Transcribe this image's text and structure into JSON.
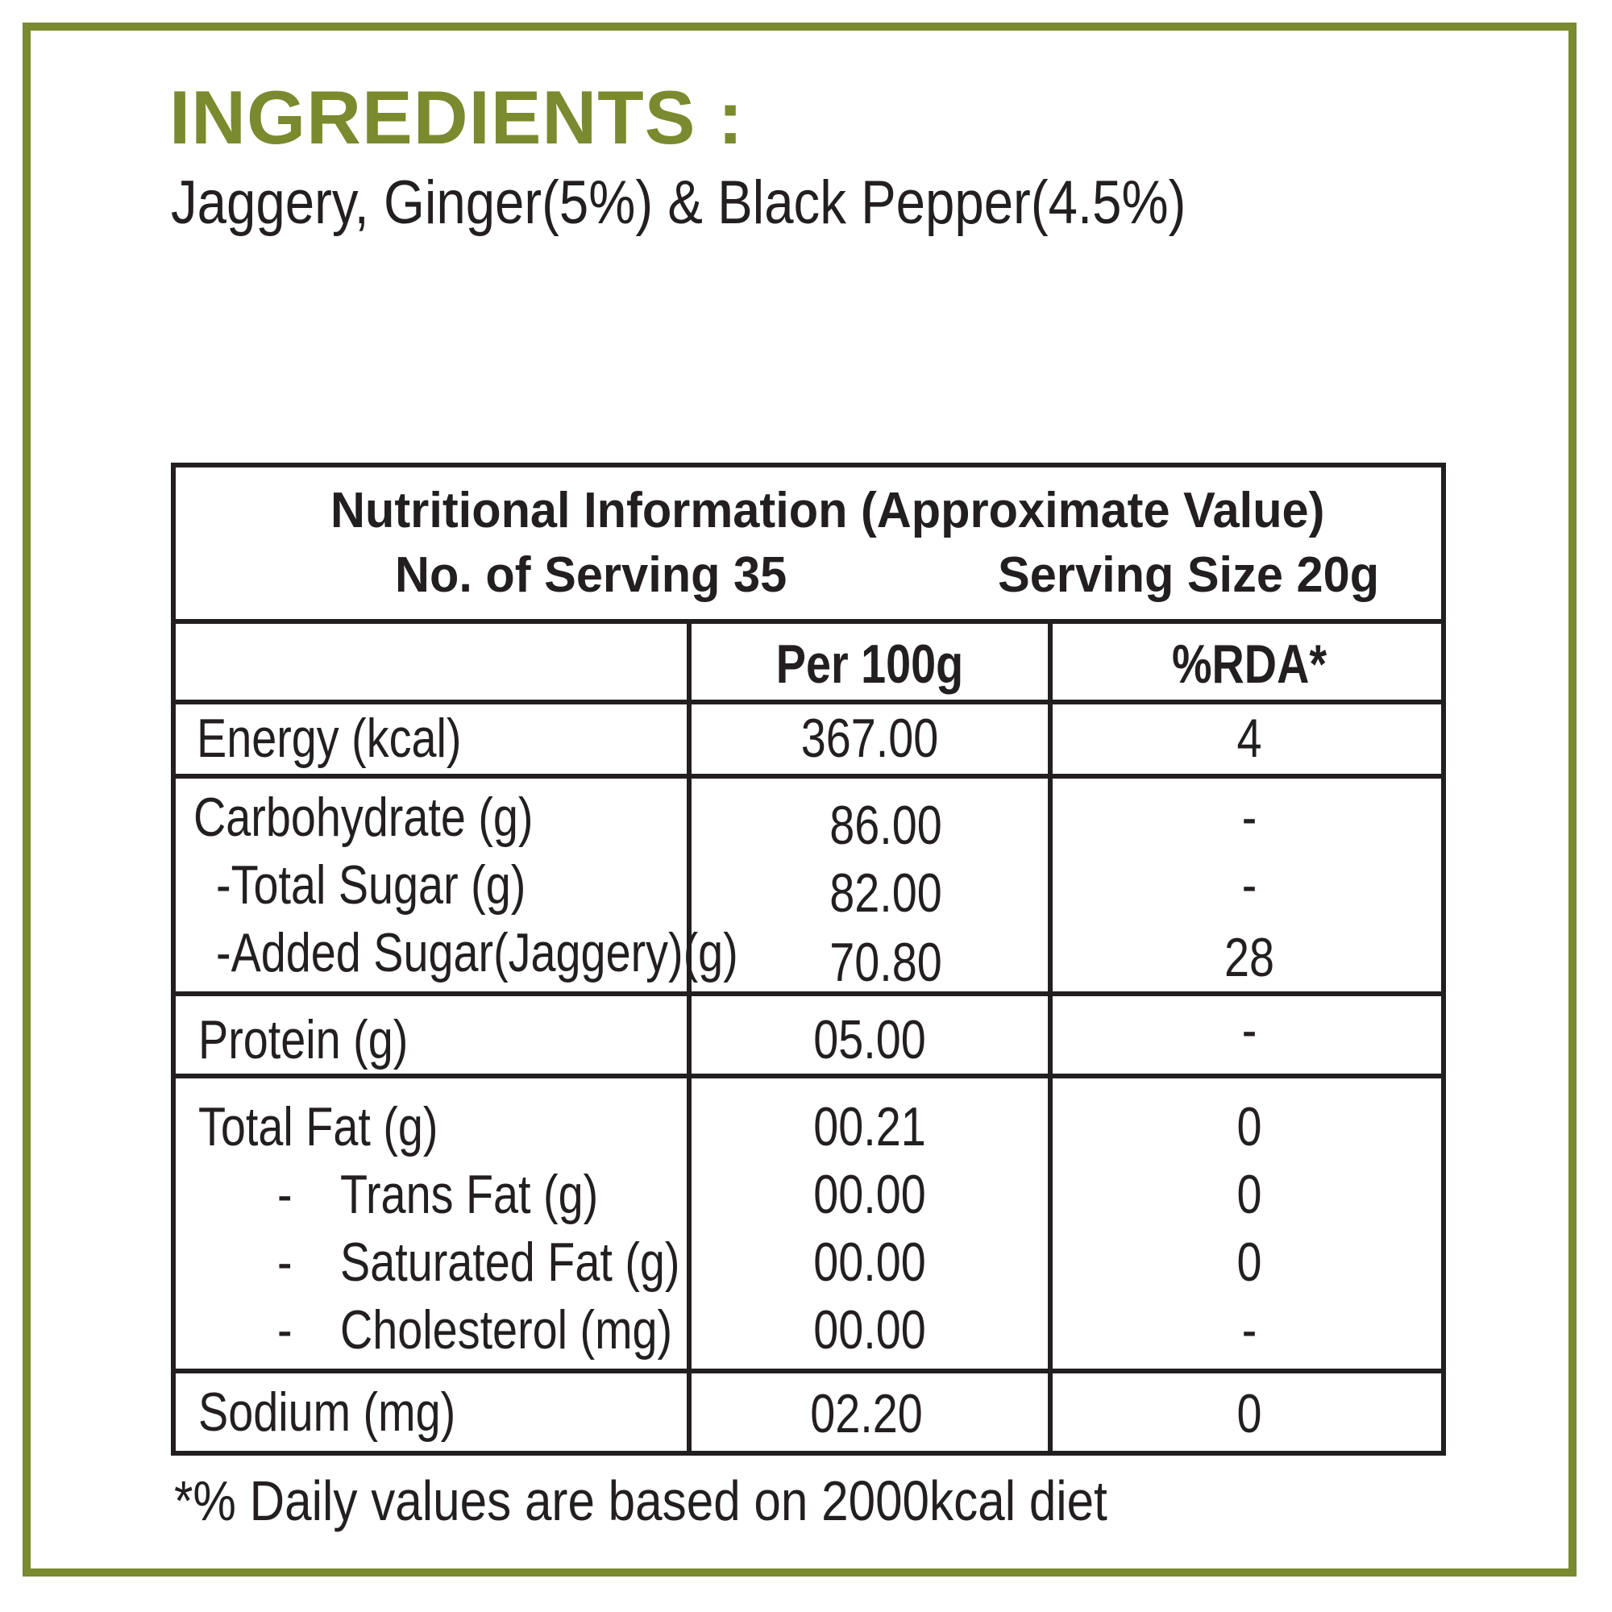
{
  "ingredients": {
    "title": "INGREDIENTS :",
    "text": "Jaggery, Ginger(5%) & Black Pepper(4.5%)"
  },
  "nutrition": {
    "title": "Nutritional Information (Approximate Value)",
    "servings_label": "No. of Serving 35",
    "serving_size_label": "Serving Size 20g",
    "col_per100": "Per 100g",
    "col_rda": "%RDA*",
    "rows": [
      {
        "label": "Energy (kcal)",
        "value": "367.00",
        "rda": "4"
      },
      {
        "label": "Carbohydrate (g)",
        "value": "86.00",
        "rda": "-"
      },
      {
        "label": "-Total Sugar (g)",
        "value": "82.00",
        "rda": "-"
      },
      {
        "label": "-Added Sugar(Jaggery)(g)",
        "value": "70.80",
        "rda": "28"
      },
      {
        "label": "Protein (g)",
        "value": "05.00",
        "rda": "-"
      },
      {
        "label": "Total Fat (g)",
        "value": "00.21",
        "rda": "0"
      },
      {
        "label": "Trans Fat (g)",
        "value": "00.00",
        "rda": "0"
      },
      {
        "label": "Saturated Fat (g)",
        "value": "00.00",
        "rda": "0"
      },
      {
        "label": "Cholesterol (mg)",
        "value": "00.00",
        "rda": "-"
      },
      {
        "label": "Sodium (mg)",
        "value": "02.20",
        "rda": "0"
      }
    ],
    "dash": "-",
    "footnote": "*% Daily values are based on 2000kcal diet"
  }
}
